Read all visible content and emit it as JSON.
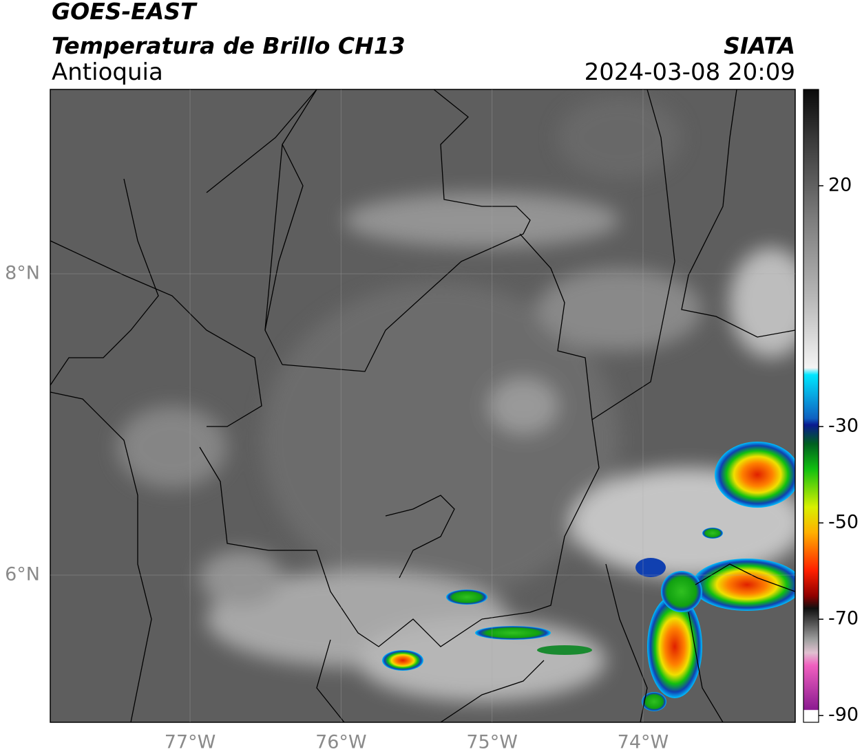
{
  "header": {
    "satellite": "GOES-EAST",
    "product": "Temperatura de Brillo CH13",
    "region": "Antioquia",
    "source": "SIATA",
    "datetime": "2024-03-08 20:09"
  },
  "map": {
    "lonlim": [
      -77.926,
      -72.992
    ],
    "latlim": [
      5.023,
      9.224
    ],
    "lonticks": [
      {
        "value": -77,
        "label": "77°W"
      },
      {
        "value": -76,
        "label": "76°W"
      },
      {
        "value": -75,
        "label": "75°W"
      },
      {
        "value": -74,
        "label": "74°W"
      }
    ],
    "latticks": [
      {
        "value": 8,
        "label": "8°N"
      },
      {
        "value": 6,
        "label": "6°N"
      }
    ]
  },
  "colorbar": {
    "lim": [
      -91.4,
      40
    ],
    "ticks": [
      20,
      -30,
      -50,
      -70,
      -90
    ]
  }
}
